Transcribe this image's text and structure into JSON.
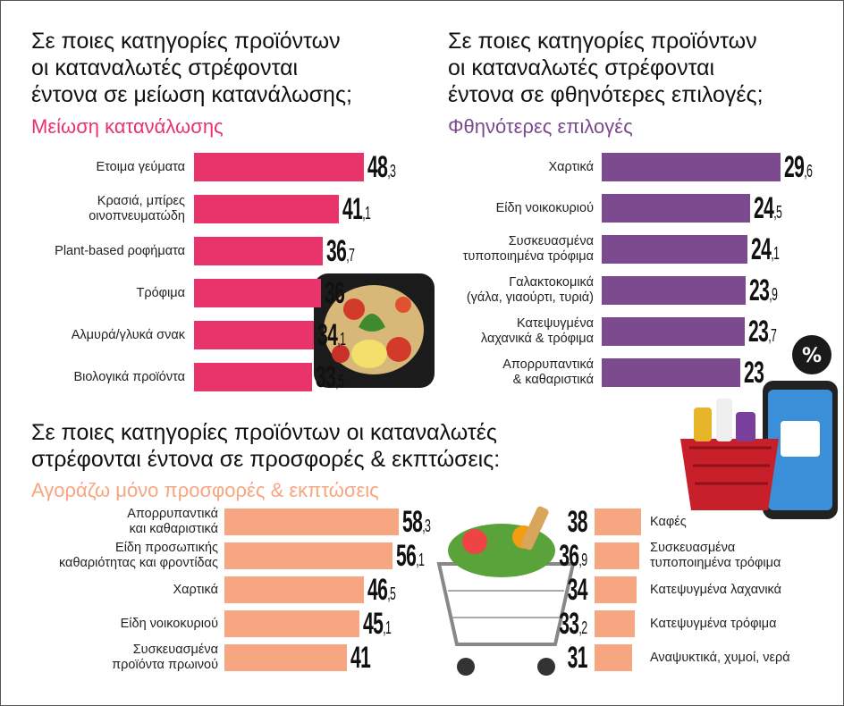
{
  "chart_data": [
    {
      "type": "bar",
      "title": "Σε ποιες κατηγορίες προϊόντων\nοι καταναλωτές στρέφονται\nέντονα σε μείωση κατανάλωσης;",
      "subtitle": "Μείωση κατανάλωσης",
      "color": "#e8336b",
      "categories": [
        "Ετοιμα γεύματα",
        "Κρασιά, μπίρες\nοινοπνευματώδη",
        "Plant-based ροφήματα",
        "Τρόφιμα",
        "Αλμυρά/γλυκά σνακ",
        "Βιολογικά προϊόντα"
      ],
      "values": [
        48.3,
        41.1,
        36.7,
        36,
        34.1,
        33.5
      ],
      "value_labels": [
        "48,3",
        "41,1",
        "36,7",
        "36",
        "34,1",
        "33,5"
      ]
    },
    {
      "type": "bar",
      "title": "Σε ποιες κατηγορίες προϊόντων\nοι καταναλωτές στρέφονται\nέντονα σε φθηνότερες επιλογές;",
      "subtitle": "Φθηνότερες επιλογές",
      "color": "#7b4a8f",
      "categories": [
        "Χαρτικά",
        "Είδη νοικοκυριού",
        "Συσκευασμένα\nτυποποιημένα τρόφιμα",
        "Γαλακτοκομικά\n(γάλα, γιαούρτι, τυριά)",
        "Κατεψυγμένα\nλαχανικά & τρόφιμα",
        "Απορρυπαντικά\n& καθαριστικά"
      ],
      "values": [
        29.6,
        24.5,
        24.1,
        23.9,
        23.7,
        23
      ],
      "value_labels": [
        "29,6",
        "24,5",
        "24,1",
        "23,9",
        "23,7",
        "23"
      ]
    },
    {
      "type": "bar",
      "title": "Σε ποιες κατηγορίες προϊόντων οι καταναλωτές\nστρέφονται έντονα σε προσφορές & εκπτώσεις:",
      "subtitle": "Αγοράζω μόνο προσφορές & εκπτώσεις",
      "color": "#f6a680",
      "categories": [
        "Απορρυπαντικά\nκαι καθαριστικά",
        "Είδη προσωπικής\nκαθαριότητας και φροντίδας",
        "Χαρτικά",
        "Είδη νοικοκυριού",
        "Συσκευασμένα\nπροϊόντα πρωινού"
      ],
      "values": [
        58.3,
        56.1,
        46.5,
        45.1,
        41
      ],
      "value_labels": [
        "58,3",
        "56,1",
        "46,5",
        "45,1",
        "41"
      ]
    },
    {
      "type": "bar",
      "color": "#f6a680",
      "categories": [
        "Καφές",
        "Συσκευασμένα\nτυποποιημένα τρόφιμα",
        "Κατεψυγμένα λαχανικά",
        "Κατεψυγμένα τρόφιμα",
        "Αναψυκτικά, χυμοί, νερά"
      ],
      "values": [
        38,
        36.9,
        34,
        33.2,
        31
      ],
      "value_labels": [
        "38",
        "36,9",
        "34",
        "33,2",
        "31"
      ]
    }
  ]
}
